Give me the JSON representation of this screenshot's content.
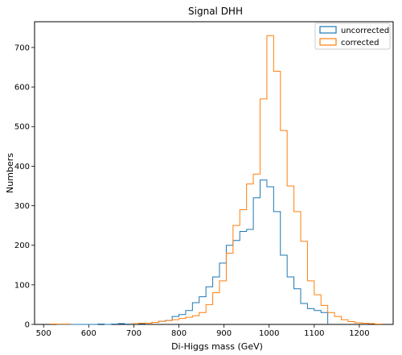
{
  "chart_data": {
    "type": "histogram-step",
    "title": "Signal DHH",
    "xlabel": "Di-Higgs mass (GeV)",
    "ylabel": "Numbers",
    "xlim": [
      480,
      1275
    ],
    "ylim": [
      0,
      765
    ],
    "x_ticks": [
      500,
      600,
      700,
      800,
      900,
      1000,
      1100,
      1200
    ],
    "y_ticks": [
      0,
      100,
      200,
      300,
      400,
      500,
      600,
      700
    ],
    "legend_position": "top-right",
    "grid": false,
    "series": [
      {
        "name": "uncorrected",
        "color": "#1f77b4",
        "bins": [
          [
            515,
            530,
            1
          ],
          [
            530,
            545,
            0
          ],
          [
            545,
            560,
            0
          ],
          [
            560,
            575,
            0
          ],
          [
            575,
            590,
            0
          ],
          [
            590,
            605,
            0
          ],
          [
            605,
            620,
            0
          ],
          [
            620,
            635,
            1
          ],
          [
            635,
            650,
            0
          ],
          [
            650,
            665,
            1
          ],
          [
            665,
            680,
            2
          ],
          [
            680,
            695,
            1
          ],
          [
            695,
            710,
            1
          ],
          [
            710,
            725,
            2
          ],
          [
            725,
            740,
            3
          ],
          [
            740,
            755,
            5
          ],
          [
            755,
            770,
            8
          ],
          [
            770,
            785,
            10
          ],
          [
            785,
            800,
            20
          ],
          [
            800,
            815,
            25
          ],
          [
            815,
            830,
            35
          ],
          [
            830,
            845,
            55
          ],
          [
            845,
            860,
            70
          ],
          [
            860,
            875,
            95
          ],
          [
            875,
            890,
            120
          ],
          [
            890,
            905,
            155
          ],
          [
            905,
            920,
            200
          ],
          [
            920,
            935,
            212
          ],
          [
            935,
            950,
            235
          ],
          [
            950,
            965,
            240
          ],
          [
            965,
            980,
            320
          ],
          [
            980,
            995,
            365
          ],
          [
            995,
            1010,
            348
          ],
          [
            1010,
            1025,
            285
          ],
          [
            1025,
            1040,
            175
          ],
          [
            1040,
            1055,
            120
          ],
          [
            1055,
            1070,
            90
          ],
          [
            1070,
            1085,
            53
          ],
          [
            1085,
            1100,
            40
          ],
          [
            1100,
            1115,
            35
          ],
          [
            1115,
            1130,
            30
          ]
        ]
      },
      {
        "name": "corrected",
        "color": "#ff7f0e",
        "bins": [
          [
            515,
            530,
            1
          ],
          [
            530,
            545,
            1
          ],
          [
            545,
            560,
            1
          ],
          [
            695,
            710,
            2
          ],
          [
            710,
            725,
            3
          ],
          [
            725,
            740,
            3
          ],
          [
            740,
            755,
            5
          ],
          [
            755,
            770,
            8
          ],
          [
            770,
            785,
            10
          ],
          [
            785,
            800,
            12
          ],
          [
            800,
            815,
            15
          ],
          [
            815,
            830,
            18
          ],
          [
            830,
            845,
            22
          ],
          [
            845,
            860,
            30
          ],
          [
            860,
            875,
            50
          ],
          [
            875,
            890,
            80
          ],
          [
            890,
            905,
            110
          ],
          [
            905,
            920,
            180
          ],
          [
            920,
            935,
            250
          ],
          [
            935,
            950,
            290
          ],
          [
            950,
            965,
            355
          ],
          [
            965,
            980,
            380
          ],
          [
            980,
            995,
            570
          ],
          [
            995,
            1010,
            730
          ],
          [
            1010,
            1025,
            640
          ],
          [
            1025,
            1040,
            490
          ],
          [
            1040,
            1055,
            350
          ],
          [
            1055,
            1070,
            285
          ],
          [
            1070,
            1085,
            210
          ],
          [
            1085,
            1100,
            110
          ],
          [
            1100,
            1115,
            75
          ],
          [
            1115,
            1130,
            48
          ],
          [
            1130,
            1145,
            30
          ],
          [
            1145,
            1160,
            20
          ],
          [
            1160,
            1175,
            12
          ],
          [
            1175,
            1190,
            7
          ],
          [
            1190,
            1205,
            4
          ],
          [
            1205,
            1220,
            3
          ],
          [
            1220,
            1235,
            2
          ],
          [
            1235,
            1250,
            1
          ]
        ]
      }
    ]
  }
}
